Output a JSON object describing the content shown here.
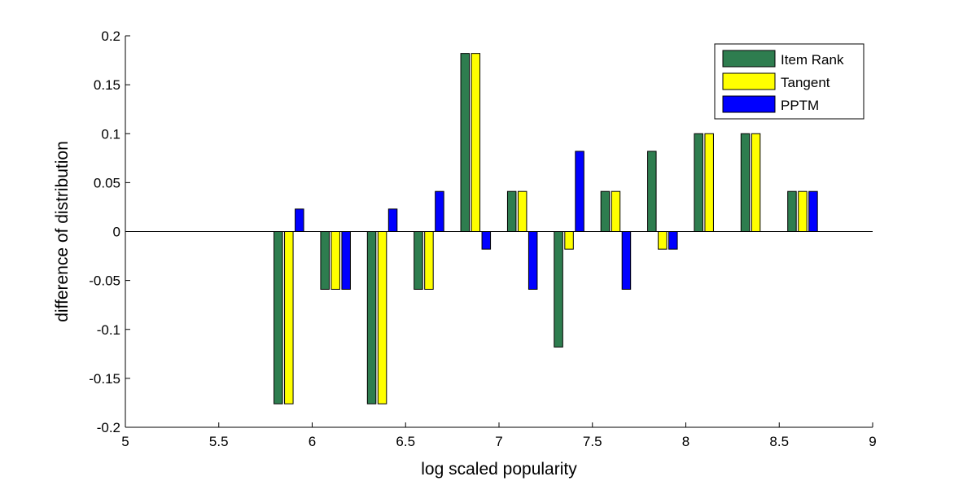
{
  "chart_data": {
    "type": "bar",
    "title": "",
    "xlabel": "log scaled popularity",
    "ylabel": "difference of distribution",
    "xlim": [
      5,
      9
    ],
    "ylim": [
      -0.2,
      0.2
    ],
    "xticks": [
      "5",
      "5.5",
      "6",
      "6.5",
      "7",
      "7.5",
      "8",
      "8.5",
      "9"
    ],
    "yticks": [
      "-0.2",
      "-0.15",
      "-0.1",
      "-0.05",
      "0",
      "0.05",
      "0.1",
      "0.15",
      "0.2"
    ],
    "grid": false,
    "legend_position": "top-right",
    "x": [
      5.875,
      6.125,
      6.375,
      6.625,
      6.875,
      7.125,
      7.375,
      7.625,
      7.875,
      8.125,
      8.375,
      8.625
    ],
    "series": [
      {
        "name": "Item Rank",
        "color": "#2e7d4f",
        "values": [
          -0.176,
          -0.059,
          -0.176,
          -0.059,
          0.182,
          0.041,
          -0.118,
          0.041,
          0.082,
          0.1,
          0.1,
          0.041
        ]
      },
      {
        "name": "Tangent",
        "color": "#ffff00",
        "values": [
          -0.176,
          -0.059,
          -0.176,
          -0.059,
          0.182,
          0.041,
          -0.018,
          0.041,
          -0.018,
          0.1,
          0.1,
          0.041
        ]
      },
      {
        "name": "PPTM",
        "color": "#0000ff",
        "values": [
          0.023,
          -0.059,
          0.023,
          0.041,
          -0.018,
          -0.059,
          0.082,
          -0.059,
          -0.018,
          null,
          null,
          0.041
        ]
      }
    ]
  }
}
